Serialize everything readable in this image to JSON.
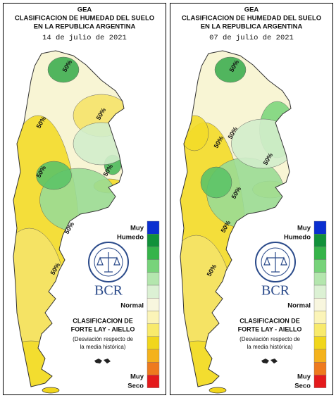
{
  "panels": [
    {
      "title_lines": [
        "GEA",
        "CLASIFICACION DE HUMEDAD DEL SUELO",
        "EN LA REPUBLICA ARGENTINA"
      ],
      "date": "14 de julio de 2021",
      "contour_labels": [
        "50%",
        "50%",
        "50%",
        "50%",
        "50%",
        "50%",
        "50%"
      ],
      "legend_top": [
        "Muy",
        "Humedo"
      ],
      "legend_mid": "Normal",
      "legend_bottom": [
        "Muy",
        "Seco"
      ],
      "logo": "BCR",
      "classification": [
        "CLASIFICACION DE",
        "FORTE LAY - AIELLO"
      ],
      "note": [
        "(Desviación respecto de",
        "la media histórica)"
      ]
    },
    {
      "title_lines": [
        "GEA",
        "CLASIFICACION DE HUMEDAD DEL SUELO",
        "EN LA REPUBLICA ARGENTINA"
      ],
      "date": "07 de julio de 2021",
      "contour_labels": [
        "50%",
        "50%",
        "50%",
        "50%",
        "50%",
        "50%",
        "50%"
      ],
      "legend_top": [
        "Muy",
        "Humedo"
      ],
      "legend_mid": "Normal",
      "legend_bottom": [
        "Muy",
        "Seco"
      ],
      "logo": "BCR",
      "classification": [
        "CLASIFICACION DE",
        "FORTE LAY - AIELLO"
      ],
      "note": [
        "(Desviación respecto de",
        "la media histórica)"
      ]
    }
  ]
}
